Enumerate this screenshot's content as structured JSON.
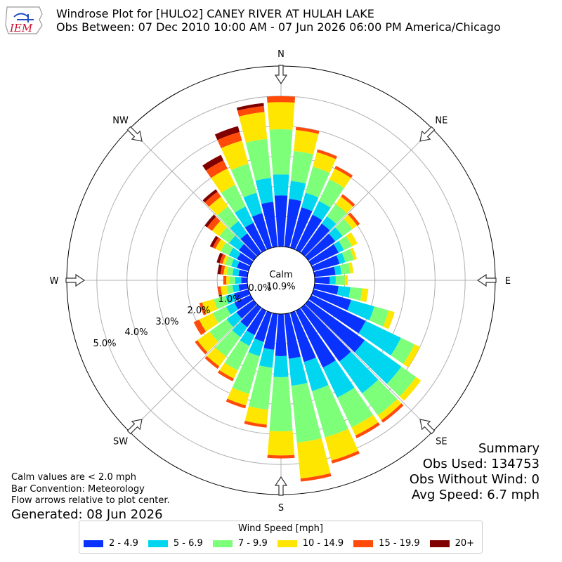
{
  "header": {
    "title": "Windrose Plot for [HULO2] CANEY RIVER  AT HULAH LAKE",
    "subtitle": "Obs Between: 07 Dec 2010 10:00 AM - 07 Jun 2026 06:00 PM America/Chicago",
    "logo_text": "IEM"
  },
  "notes": {
    "line1": "Calm values are < 2.0 mph",
    "line2": "Bar Convention: Meteorology",
    "line3": "Flow arrows relative to plot center.",
    "generated": "Generated: 08 Jun 2026"
  },
  "summary": {
    "title": "Summary",
    "obs_used": "Obs Used: 134753",
    "obs_without_wind": "Obs Without Wind: 0",
    "avg_speed": "Avg Speed: 6.7 mph"
  },
  "legend": {
    "title": "Wind Speed [mph]",
    "items": [
      {
        "label": "2 - 4.9",
        "color": "#0a32ff"
      },
      {
        "label": "5 - 6.9",
        "color": "#00d6f0"
      },
      {
        "label": "7 - 9.9",
        "color": "#7dff7a"
      },
      {
        "label": "10 - 14.9",
        "color": "#ffe600"
      },
      {
        "label": "15 - 19.9",
        "color": "#ff4a0a"
      },
      {
        "label": "20+",
        "color": "#800000"
      }
    ]
  },
  "chart_data": {
    "type": "windrose",
    "directions": [
      "N",
      "NNE",
      "NE",
      "ENE",
      "E",
      "ESE",
      "SE",
      "SSE",
      "S",
      "SSW",
      "SW",
      "WSW",
      "W",
      "WNW",
      "NW",
      "NNW"
    ],
    "direction_labels": [
      "N",
      "NE",
      "E",
      "SE",
      "S",
      "SW",
      "W",
      "NW"
    ],
    "calm_label": "Calm",
    "calm_value": "10.9%",
    "radial_ticks": [
      {
        "value": 0.0,
        "label": "0.0%"
      },
      {
        "value": 1.0,
        "label": "1.0%"
      },
      {
        "value": 2.0,
        "label": "2.0%"
      },
      {
        "value": 3.0,
        "label": "3.0%"
      },
      {
        "value": 4.0,
        "label": "4.0%"
      },
      {
        "value": 5.0,
        "label": "5.0%"
      }
    ],
    "radial_max": 6.0,
    "bar_order": [
      "N",
      "",
      "",
      "",
      "NNE",
      "",
      "",
      "",
      "NE",
      "",
      "",
      "",
      "ENE",
      "",
      "",
      "",
      "E",
      "",
      "",
      "",
      "ESE",
      "",
      "",
      "",
      "SE",
      "",
      "",
      "",
      "SSE",
      "",
      "",
      "",
      "S",
      "",
      "",
      "",
      "SSW",
      "",
      "",
      "",
      "SW",
      "",
      "",
      "",
      "WSW",
      "",
      "",
      "",
      "W",
      "",
      "",
      "",
      "WNW",
      "",
      "",
      "",
      "NW",
      "",
      "",
      "",
      "NNW",
      "",
      "",
      ""
    ],
    "series_names": [
      "2 - 4.9",
      "5 - 6.9",
      "7 - 9.9",
      "10 - 14.9",
      "15 - 19.9",
      "20+"
    ],
    "bins_36": [
      [
        1.7,
        0.7,
        1.5,
        0.9,
        0.2,
        0.0
      ],
      [
        1.6,
        0.6,
        1.0,
        0.7,
        0.1,
        0.0
      ],
      [
        1.4,
        0.5,
        0.9,
        0.5,
        0.1,
        0.0
      ],
      [
        1.3,
        0.5,
        0.8,
        0.4,
        0.1,
        0.0
      ],
      [
        1.2,
        0.3,
        0.5,
        0.3,
        0.1,
        0.0
      ],
      [
        1.1,
        0.3,
        0.4,
        0.2,
        0.1,
        0.0
      ],
      [
        1.0,
        0.2,
        0.3,
        0.2,
        0.0,
        0.0
      ],
      [
        0.9,
        0.2,
        0.3,
        0.1,
        0.0,
        0.0
      ],
      [
        0.7,
        0.2,
        0.3,
        0.1,
        0.0,
        0.0
      ],
      [
        0.5,
        0.2,
        0.3,
        0.1,
        0.0,
        0.0
      ],
      [
        0.8,
        0.4,
        0.4,
        0.2,
        0.0,
        0.0
      ],
      [
        1.3,
        0.8,
        0.5,
        0.2,
        0.0,
        0.0
      ],
      [
        2.0,
        1.3,
        0.5,
        0.2,
        0.0,
        0.0
      ],
      [
        2.3,
        1.5,
        0.6,
        0.2,
        0.0,
        0.0
      ],
      [
        2.2,
        1.3,
        0.9,
        0.2,
        0.1,
        0.0
      ],
      [
        2.1,
        1.1,
        1.1,
        0.3,
        0.1,
        0.0
      ],
      [
        1.7,
        1.0,
        1.6,
        0.8,
        0.1,
        0.0
      ],
      [
        1.5,
        0.9,
        1.9,
        1.2,
        0.1,
        0.0
      ],
      [
        1.4,
        0.7,
        1.8,
        0.8,
        0.1,
        0.0
      ],
      [
        1.2,
        0.6,
        1.4,
        0.5,
        0.1,
        0.0
      ],
      [
        1.0,
        0.5,
        1.3,
        0.4,
        0.1,
        0.0
      ],
      [
        0.9,
        0.4,
        0.9,
        0.3,
        0.1,
        0.0
      ],
      [
        0.8,
        0.4,
        0.8,
        0.4,
        0.1,
        0.0
      ],
      [
        0.7,
        0.4,
        0.7,
        0.5,
        0.1,
        0.0
      ],
      [
        0.6,
        0.3,
        0.5,
        0.5,
        0.2,
        0.0
      ],
      [
        0.5,
        0.3,
        0.4,
        0.4,
        0.1,
        0.0
      ],
      [
        0.3,
        0.2,
        0.2,
        0.2,
        0.1,
        0.0
      ],
      [
        0.2,
        0.2,
        0.2,
        0.1,
        0.1,
        0.0
      ],
      [
        0.3,
        0.2,
        0.2,
        0.1,
        0.1,
        0.1
      ],
      [
        0.4,
        0.2,
        0.2,
        0.1,
        0.1,
        0.1
      ],
      [
        0.5,
        0.3,
        0.3,
        0.2,
        0.1,
        0.1
      ],
      [
        0.6,
        0.4,
        0.4,
        0.3,
        0.2,
        0.1
      ],
      [
        0.8,
        0.5,
        0.6,
        0.4,
        0.2,
        0.1
      ],
      [
        1.0,
        0.6,
        0.8,
        0.6,
        0.3,
        0.2
      ],
      [
        1.2,
        0.7,
        1.0,
        0.8,
        0.3,
        0.2
      ],
      [
        1.5,
        0.8,
        1.3,
        0.9,
        0.2,
        0.1
      ]
    ]
  }
}
